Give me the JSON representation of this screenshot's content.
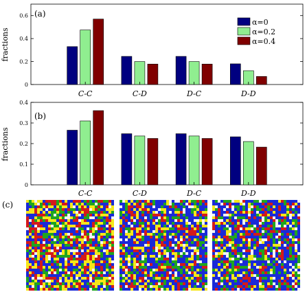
{
  "chart_data": [
    {
      "panel": "(a)",
      "type": "bar",
      "categories": [
        "C-C",
        "C-D",
        "D-C",
        "D-D"
      ],
      "ylabel": "fractions",
      "ylim": [
        0,
        0.7
      ],
      "yticks": [
        "0",
        "0.2",
        "0.4",
        "0.6"
      ],
      "legend_position": "top-right",
      "series": [
        {
          "name": "α=0",
          "color": "#000080",
          "values": [
            0.33,
            0.245,
            0.245,
            0.18
          ]
        },
        {
          "name": "α=0.2",
          "color": "#90ee90",
          "values": [
            0.475,
            0.2,
            0.2,
            0.12
          ]
        },
        {
          "name": "α=0.4",
          "color": "#800000",
          "values": [
            0.57,
            0.178,
            0.178,
            0.07
          ]
        }
      ]
    },
    {
      "panel": "(b)",
      "type": "bar",
      "categories": [
        "C-C",
        "C-D",
        "D-C",
        "D-D"
      ],
      "ylabel": "fractions",
      "ylim": [
        0,
        0.4
      ],
      "yticks": [
        "0",
        "0.1",
        "0.2",
        "0.3",
        "0.4"
      ],
      "series": [
        {
          "name": "α=0",
          "color": "#000080",
          "values": [
            0.265,
            0.248,
            0.248,
            0.233
          ]
        },
        {
          "name": "α=0.2",
          "color": "#90ee90",
          "values": [
            0.31,
            0.237,
            0.237,
            0.21
          ]
        },
        {
          "name": "α=0.4",
          "color": "#800000",
          "values": [
            0.36,
            0.225,
            0.225,
            0.183
          ]
        }
      ]
    }
  ],
  "panel_c": {
    "label": "(c)",
    "snapshot_colors": [
      "#1a2ad8",
      "#1fa51f",
      "#f5e61a",
      "#d41a1a",
      "#f2f2f2"
    ]
  }
}
